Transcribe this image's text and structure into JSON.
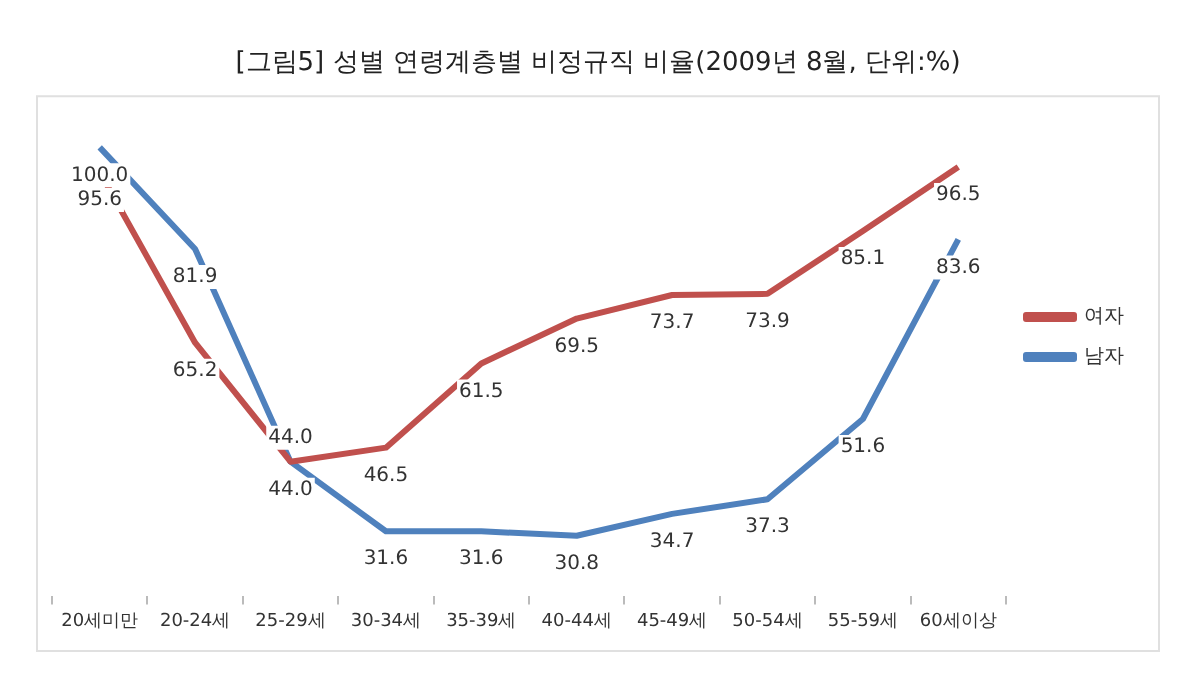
{
  "chart_data": {
    "type": "line",
    "title": "[그림5] 성별 연령계층별 비정규직 비율(2009년 8월, 단위:%)",
    "categories": [
      "20세미만",
      "20-24세",
      "25-29세",
      "30-34세",
      "35-39세",
      "40-44세",
      "45-49세",
      "50-54세",
      "55-59세",
      "60세이상"
    ],
    "series": [
      {
        "name": "여자",
        "color": "#c0504d",
        "values": [
          95.6,
          65.2,
          44.0,
          46.5,
          61.5,
          69.5,
          73.7,
          73.9,
          85.1,
          96.5
        ],
        "value_labels": [
          "95.6",
          "65.2",
          "44.0",
          "46.5",
          "61.5",
          "69.5",
          "73.7",
          "73.9",
          "85.1",
          "96.5"
        ]
      },
      {
        "name": "남자",
        "color": "#4f81bd",
        "values": [
          100.0,
          81.9,
          44.0,
          31.6,
          31.6,
          30.8,
          34.7,
          37.3,
          51.6,
          83.6
        ],
        "value_labels": [
          "100.0",
          "81.9",
          "44.0",
          "31.6",
          "31.6",
          "30.8",
          "34.7",
          "37.3",
          "51.6",
          "83.6"
        ]
      }
    ],
    "legend": "right",
    "grid": false,
    "marker": "none",
    "line_style": "solid"
  }
}
